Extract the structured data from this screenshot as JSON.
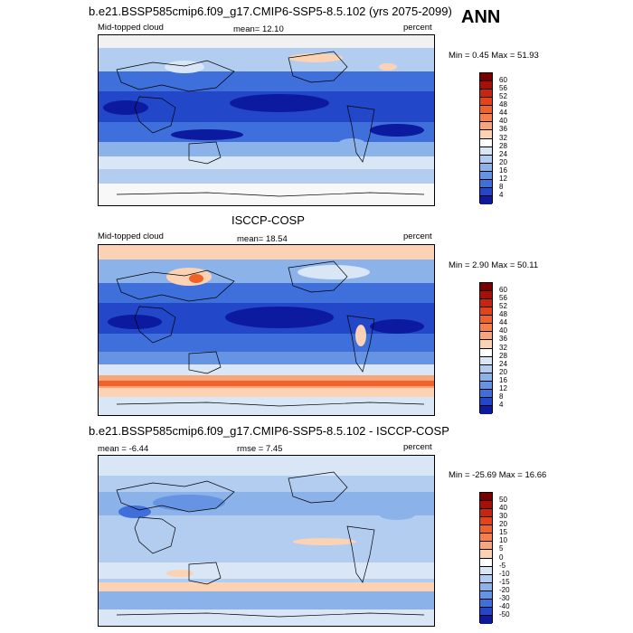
{
  "season": "ANN",
  "panels": [
    {
      "header": "b.e21.BSSP585cmip6.f09_g17.CMIP6-SSP5-8.5.102 (yrs 2075-2099)",
      "left_label": "Mid-topped cloud",
      "center_label": "mean=  12.10",
      "units": "percent",
      "minmax": "Min =   0.45 Max =  51.93",
      "colorbar": {
        "labels": [
          "60",
          "56",
          "52",
          "48",
          "44",
          "40",
          "36",
          "32",
          "28",
          "24",
          "20",
          "16",
          "12",
          "8",
          "4"
        ],
        "colors": [
          "#7a0000",
          "#a51008",
          "#c82410",
          "#e04418",
          "#f0622a",
          "#f5804a",
          "#f9a47a",
          "#fcd2b4",
          "#ffffff",
          "#d8e6f6",
          "#b2cdf0",
          "#8cb2ea",
          "#6694e2",
          "#3e6fda",
          "#2247c9",
          "#0c1aa0"
        ]
      }
    },
    {
      "header": "ISCCP-COSP",
      "left_label": "Mid-topped cloud",
      "center_label": "mean=  18.54",
      "units": "percent",
      "minmax": "Min =   2.90 Max =  50.11",
      "colorbar": {
        "labels": [
          "60",
          "56",
          "52",
          "48",
          "44",
          "40",
          "36",
          "32",
          "28",
          "24",
          "20",
          "16",
          "12",
          "8",
          "4"
        ],
        "colors": [
          "#7a0000",
          "#a51008",
          "#c82410",
          "#e04418",
          "#f0622a",
          "#f5804a",
          "#f9a47a",
          "#fcd2b4",
          "#ffffff",
          "#d8e6f6",
          "#b2cdf0",
          "#8cb2ea",
          "#6694e2",
          "#3e6fda",
          "#2247c9",
          "#0c1aa0"
        ]
      }
    },
    {
      "header": "b.e21.BSSP585cmip6.f09_g17.CMIP6-SSP5-8.5.102 - ISCCP-COSP",
      "left_label": "mean =  -6.44",
      "center_label": "rmse =   7.45",
      "units": "percent",
      "minmax": "Min = -25.69 Max =  16.66",
      "colorbar": {
        "labels": [
          "50",
          "40",
          "30",
          "20",
          "15",
          "10",
          "5",
          "0",
          "-5",
          "-10",
          "-15",
          "-20",
          "-30",
          "-40",
          "-50"
        ],
        "colors": [
          "#7a0000",
          "#a51008",
          "#c82410",
          "#e04418",
          "#f0622a",
          "#f5804a",
          "#f9a47a",
          "#fcd2b4",
          "#ffffff",
          "#d8e6f6",
          "#b2cdf0",
          "#8cb2ea",
          "#6694e2",
          "#3e6fda",
          "#2247c9",
          "#0c1aa0"
        ]
      }
    }
  ]
}
